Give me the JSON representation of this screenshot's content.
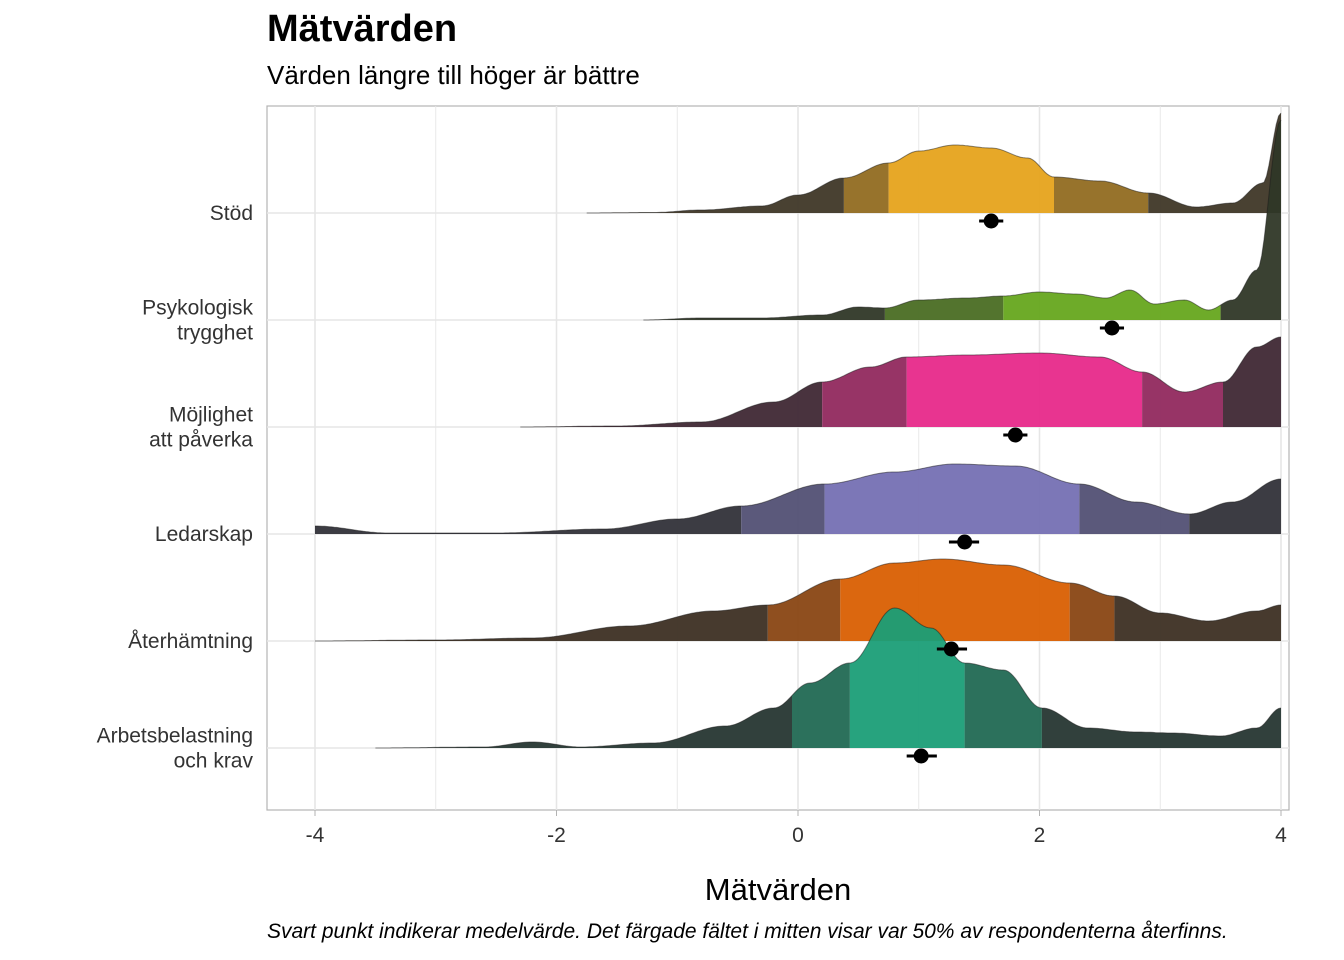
{
  "chart_data": {
    "type": "ridgeline",
    "title": "Mätvärden",
    "subtitle": "Värden längre till höger är bättre",
    "xlabel": "Mätvärden",
    "caption": "Svart punkt indikerar medelvärde. Det färgade fältet i mitten visar var 50% av respondenterna återfinns.",
    "xlim": [
      -4.4,
      4.2
    ],
    "x_ticks": [
      -4,
      -2,
      0,
      2,
      4
    ],
    "x_tick_labels": [
      "-4",
      "-2",
      "0",
      "2",
      "4"
    ],
    "grid": true,
    "series": [
      {
        "label_lines": [
          "Stöd"
        ],
        "color": "#e6a31c",
        "mean": 1.6,
        "ci": [
          1.5,
          1.7
        ],
        "quantiles": [
          0.38,
          0.75,
          2.12,
          2.9
        ],
        "density": [
          [
            -1.75,
            0
          ],
          [
            -1.2,
            0.005
          ],
          [
            -0.8,
            0.03
          ],
          [
            -0.3,
            0.07
          ],
          [
            0,
            0.18
          ],
          [
            0.38,
            0.35
          ],
          [
            0.75,
            0.5
          ],
          [
            1.0,
            0.62
          ],
          [
            1.3,
            0.68
          ],
          [
            1.6,
            0.65
          ],
          [
            1.9,
            0.55
          ],
          [
            2.12,
            0.36
          ],
          [
            2.5,
            0.32
          ],
          [
            2.9,
            0.2
          ],
          [
            3.3,
            0.06
          ],
          [
            3.6,
            0.1
          ],
          [
            3.85,
            0.3
          ],
          [
            4.0,
            1.0
          ]
        ]
      },
      {
        "label_lines": [
          "Psykologisk",
          "trygghet"
        ],
        "color": "#66a61e",
        "mean": 2.6,
        "ci": [
          2.5,
          2.7
        ],
        "quantiles": [
          0.72,
          1.7,
          3.5,
          3.5
        ],
        "density": [
          [
            -1.28,
            0
          ],
          [
            -0.8,
            0.02
          ],
          [
            -0.3,
            0.02
          ],
          [
            0.2,
            0.05
          ],
          [
            0.5,
            0.13
          ],
          [
            0.72,
            0.12
          ],
          [
            1.0,
            0.2
          ],
          [
            1.4,
            0.22
          ],
          [
            1.7,
            0.24
          ],
          [
            2.0,
            0.28
          ],
          [
            2.3,
            0.26
          ],
          [
            2.55,
            0.22
          ],
          [
            2.75,
            0.3
          ],
          [
            2.95,
            0.16
          ],
          [
            3.2,
            0.2
          ],
          [
            3.4,
            0.1
          ],
          [
            3.6,
            0.2
          ],
          [
            3.8,
            0.5
          ],
          [
            4.0,
            2.0
          ]
        ]
      },
      {
        "label_lines": [
          "Möjlighet",
          "att påverka"
        ],
        "color": "#e7298a",
        "mean": 1.8,
        "ci": [
          1.7,
          1.9
        ],
        "quantiles": [
          0.2,
          0.9,
          2.85,
          3.52
        ],
        "density": [
          [
            -2.3,
            0
          ],
          [
            -1.5,
            0.01
          ],
          [
            -0.8,
            0.05
          ],
          [
            -0.2,
            0.25
          ],
          [
            0.2,
            0.45
          ],
          [
            0.6,
            0.6
          ],
          [
            0.9,
            0.7
          ],
          [
            1.4,
            0.72
          ],
          [
            2.0,
            0.74
          ],
          [
            2.5,
            0.7
          ],
          [
            2.85,
            0.55
          ],
          [
            3.2,
            0.35
          ],
          [
            3.52,
            0.45
          ],
          [
            3.8,
            0.8
          ],
          [
            4.0,
            0.9
          ]
        ]
      },
      {
        "label_lines": [
          "Ledarskap"
        ],
        "color": "#7570b3",
        "mean": 1.38,
        "ci": [
          1.25,
          1.5
        ],
        "quantiles": [
          -0.47,
          0.22,
          2.33,
          3.24
        ],
        "density": [
          [
            -4.0,
            0.08
          ],
          [
            -3.4,
            0.01
          ],
          [
            -2.5,
            0.01
          ],
          [
            -1.6,
            0.05
          ],
          [
            -1.0,
            0.15
          ],
          [
            -0.47,
            0.28
          ],
          [
            0.22,
            0.5
          ],
          [
            0.8,
            0.62
          ],
          [
            1.3,
            0.7
          ],
          [
            1.8,
            0.68
          ],
          [
            2.33,
            0.5
          ],
          [
            2.8,
            0.32
          ],
          [
            3.24,
            0.2
          ],
          [
            3.6,
            0.32
          ],
          [
            4.0,
            0.55
          ]
        ]
      },
      {
        "label_lines": [
          "Återhämtning"
        ],
        "color": "#d95f02",
        "mean": 1.27,
        "ci": [
          1.15,
          1.4
        ],
        "quantiles": [
          -0.25,
          0.35,
          2.25,
          2.62
        ],
        "density": [
          [
            -4.0,
            0
          ],
          [
            -3.0,
            0.01
          ],
          [
            -2.2,
            0.03
          ],
          [
            -1.4,
            0.15
          ],
          [
            -0.7,
            0.3
          ],
          [
            -0.25,
            0.36
          ],
          [
            0.35,
            0.62
          ],
          [
            0.8,
            0.78
          ],
          [
            1.2,
            0.82
          ],
          [
            1.7,
            0.76
          ],
          [
            2.25,
            0.58
          ],
          [
            2.62,
            0.45
          ],
          [
            3.0,
            0.28
          ],
          [
            3.4,
            0.2
          ],
          [
            3.8,
            0.3
          ],
          [
            4.0,
            0.36
          ]
        ]
      },
      {
        "label_lines": [
          "Arbetsbelastning",
          "och krav"
        ],
        "color": "#1b9e77",
        "mean": 1.02,
        "ci": [
          0.9,
          1.15
        ],
        "quantiles": [
          -0.05,
          0.43,
          1.38,
          2.02
        ],
        "density": [
          [
            -3.5,
            0
          ],
          [
            -2.6,
            0.01
          ],
          [
            -2.2,
            0.06
          ],
          [
            -1.8,
            0.01
          ],
          [
            -1.2,
            0.05
          ],
          [
            -0.6,
            0.22
          ],
          [
            -0.2,
            0.4
          ],
          [
            0.1,
            0.65
          ],
          [
            0.43,
            0.85
          ],
          [
            0.8,
            1.4
          ],
          [
            1.1,
            1.2
          ],
          [
            1.38,
            0.85
          ],
          [
            1.7,
            0.78
          ],
          [
            2.02,
            0.4
          ],
          [
            2.4,
            0.2
          ],
          [
            2.8,
            0.16
          ],
          [
            3.1,
            0.15
          ],
          [
            3.5,
            0.12
          ],
          [
            3.8,
            0.2
          ],
          [
            4.0,
            0.4
          ]
        ]
      }
    ]
  }
}
